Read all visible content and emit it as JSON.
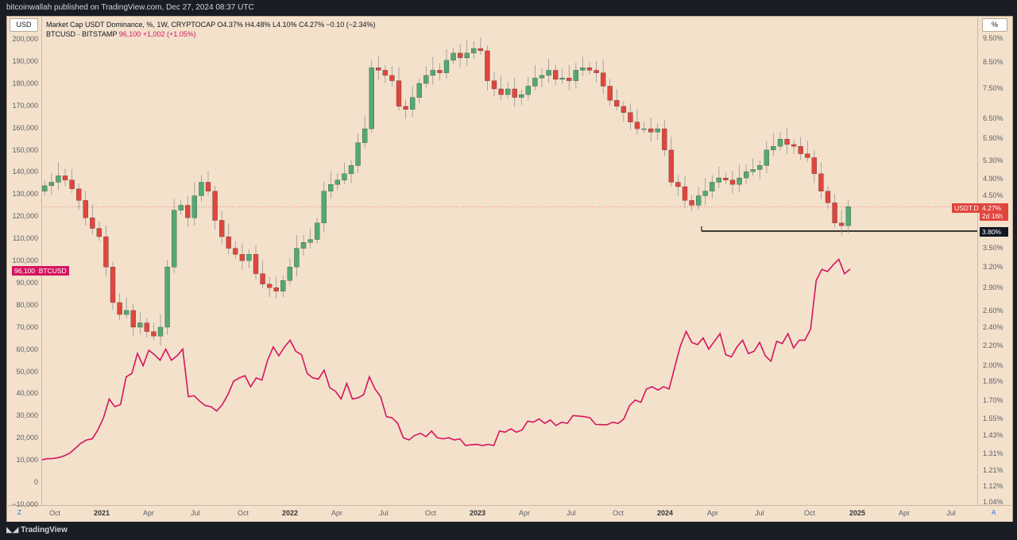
{
  "header": {
    "published": "bitcoinwallah published on TradingView.com, Dec 27, 2024 08:37 UTC"
  },
  "scale_buttons": {
    "left": "USD",
    "right": "%"
  },
  "legend": {
    "line1": "Market Cap USDT Dominance, %, 1W, CRYPTOCAP  O4.37%  H4.48%  L4.10%  C4.27%  −0.10 (−2.34%)",
    "line2_name": "BTCUSD · BITSTAMP",
    "line2_values": "96,100  +1,002 (+1.05%)"
  },
  "tags": {
    "btc_price": "96,100",
    "btc_label": "BTCUSD",
    "usdt_label": "USDT.D",
    "usdt_value": "4.27%",
    "usdt_countdown": "2d 16h",
    "support_level": "3.80%"
  },
  "left_axis_ticks": [
    "200,000",
    "190,000",
    "180,000",
    "170,000",
    "160,000",
    "150,000",
    "140,000",
    "130,000",
    "120,000",
    "110,000",
    "100,000",
    "90,000",
    "80,000",
    "70,000",
    "60,000",
    "50,000",
    "40,000",
    "30,000",
    "20,000",
    "10,000",
    "0",
    "−10,000"
  ],
  "right_axis_ticks": [
    "9.50%",
    "8.50%",
    "7.50%",
    "6.50%",
    "5.90%",
    "5.30%",
    "4.90%",
    "4.50%",
    "3.50%",
    "3.20%",
    "2.90%",
    "2.60%",
    "2.40%",
    "2.20%",
    "2.00%",
    "1.85%",
    "1.70%",
    "1.55%",
    "1.43%",
    "1.31%",
    "1.21%",
    "1.12%",
    "1.04%"
  ],
  "time_axis": [
    {
      "label": "Oct",
      "bold": false
    },
    {
      "label": "2021",
      "bold": true
    },
    {
      "label": "Apr",
      "bold": false
    },
    {
      "label": "Jul",
      "bold": false
    },
    {
      "label": "Oct",
      "bold": false
    },
    {
      "label": "2022",
      "bold": true
    },
    {
      "label": "Apr",
      "bold": false
    },
    {
      "label": "Jul",
      "bold": false
    },
    {
      "label": "Oct",
      "bold": false
    },
    {
      "label": "2023",
      "bold": true
    },
    {
      "label": "Apr",
      "bold": false
    },
    {
      "label": "Jul",
      "bold": false
    },
    {
      "label": "Oct",
      "bold": false
    },
    {
      "label": "2024",
      "bold": true
    },
    {
      "label": "Apr",
      "bold": false
    },
    {
      "label": "Jul",
      "bold": false
    },
    {
      "label": "Oct",
      "bold": false
    },
    {
      "label": "2025",
      "bold": true
    },
    {
      "label": "Apr",
      "bold": false
    },
    {
      "label": "Jul",
      "bold": false
    }
  ],
  "axis_buttons": {
    "zoom": "Z",
    "auto": "A"
  },
  "footer": {
    "brand": "TradingView"
  },
  "colors": {
    "up": "#53a873",
    "down": "#e0463c",
    "btc_line": "#d6145f",
    "background": "#f3e1cc"
  },
  "chart_data": {
    "type": "line",
    "series": [
      {
        "name": "USDT.D",
        "chart_style": "candlestick",
        "units": "percent",
        "period": "1W",
        "closes": [
          4.72,
          4.8,
          4.95,
          4.85,
          4.65,
          4.4,
          4.05,
          3.85,
          3.7,
          3.2,
          2.7,
          2.55,
          2.6,
          2.4,
          2.45,
          2.35,
          2.3,
          2.4,
          3.2,
          4.2,
          4.3,
          4.05,
          4.5,
          4.8,
          4.6,
          4.0,
          3.7,
          3.5,
          3.4,
          3.3,
          3.4,
          3.1,
          2.95,
          2.9,
          2.85,
          3.0,
          3.2,
          3.5,
          3.6,
          3.65,
          3.95,
          4.6,
          4.75,
          4.85,
          5.0,
          5.2,
          5.8,
          6.2,
          8.3,
          8.2,
          8.0,
          7.8,
          6.9,
          6.8,
          7.2,
          7.7,
          8.0,
          8.2,
          8.1,
          8.6,
          8.9,
          8.7,
          8.9,
          9.1,
          9.0,
          7.8,
          7.5,
          7.3,
          7.5,
          7.2,
          7.3,
          7.6,
          7.9,
          8.0,
          8.2,
          7.85,
          7.9,
          7.8,
          8.2,
          8.3,
          8.2,
          8.1,
          7.6,
          7.1,
          6.9,
          6.7,
          6.4,
          6.2,
          6.2,
          6.1,
          6.2,
          5.6,
          4.8,
          4.7,
          4.4,
          4.3,
          4.5,
          4.6,
          4.8,
          4.9,
          4.85,
          4.75,
          4.9,
          5.05,
          5.1,
          5.2,
          5.6,
          5.7,
          5.9,
          5.75,
          5.7,
          5.5,
          5.4,
          5.0,
          4.6,
          4.35,
          3.95,
          3.9,
          4.27
        ],
        "support_level": 3.8,
        "last": 4.27
      },
      {
        "name": "BTCUSD",
        "chart_style": "line",
        "units": "USD",
        "values": [
          10000,
          10500,
          10600,
          11000,
          11800,
          13000,
          15200,
          17500,
          19000,
          19500,
          23500,
          29000,
          37500,
          34000,
          35000,
          47500,
          49000,
          58000,
          52500,
          59500,
          57500,
          55000,
          60000,
          55000,
          57000,
          60000,
          38500,
          39000,
          36500,
          34500,
          34000,
          32000,
          35000,
          39500,
          45500,
          47000,
          48000,
          43000,
          47000,
          46000,
          55000,
          61000,
          57000,
          61000,
          64000,
          59000,
          57500,
          49000,
          47000,
          46500,
          50500,
          42500,
          41000,
          37500,
          44500,
          37500,
          38000,
          39500,
          47500,
          42000,
          38500,
          29500,
          29000,
          26500,
          20000,
          19000,
          21000,
          22000,
          20500,
          23000,
          20000,
          19500,
          20000,
          19000,
          19500,
          16500,
          16800,
          17000,
          16500,
          17000,
          16500,
          23000,
          22500,
          24000,
          22500,
          23500,
          27500,
          27000,
          28500,
          26500,
          28000,
          25500,
          27000,
          26500,
          30000,
          29800,
          29500,
          29000,
          26000,
          25900,
          25800,
          27000,
          26500,
          28500,
          34500,
          37000,
          36000,
          42000,
          43000,
          41500,
          43000,
          42000,
          52000,
          61500,
          68000,
          63000,
          62000,
          65000,
          60000,
          63500,
          67000,
          57500,
          56500,
          61000,
          64000,
          58000,
          59000,
          63000,
          57000,
          54500,
          63500,
          62500,
          67000,
          60500,
          64000,
          64000,
          69000,
          91000,
          96000,
          95000,
          98000,
          100500,
          94000,
          96100
        ]
      }
    ]
  }
}
